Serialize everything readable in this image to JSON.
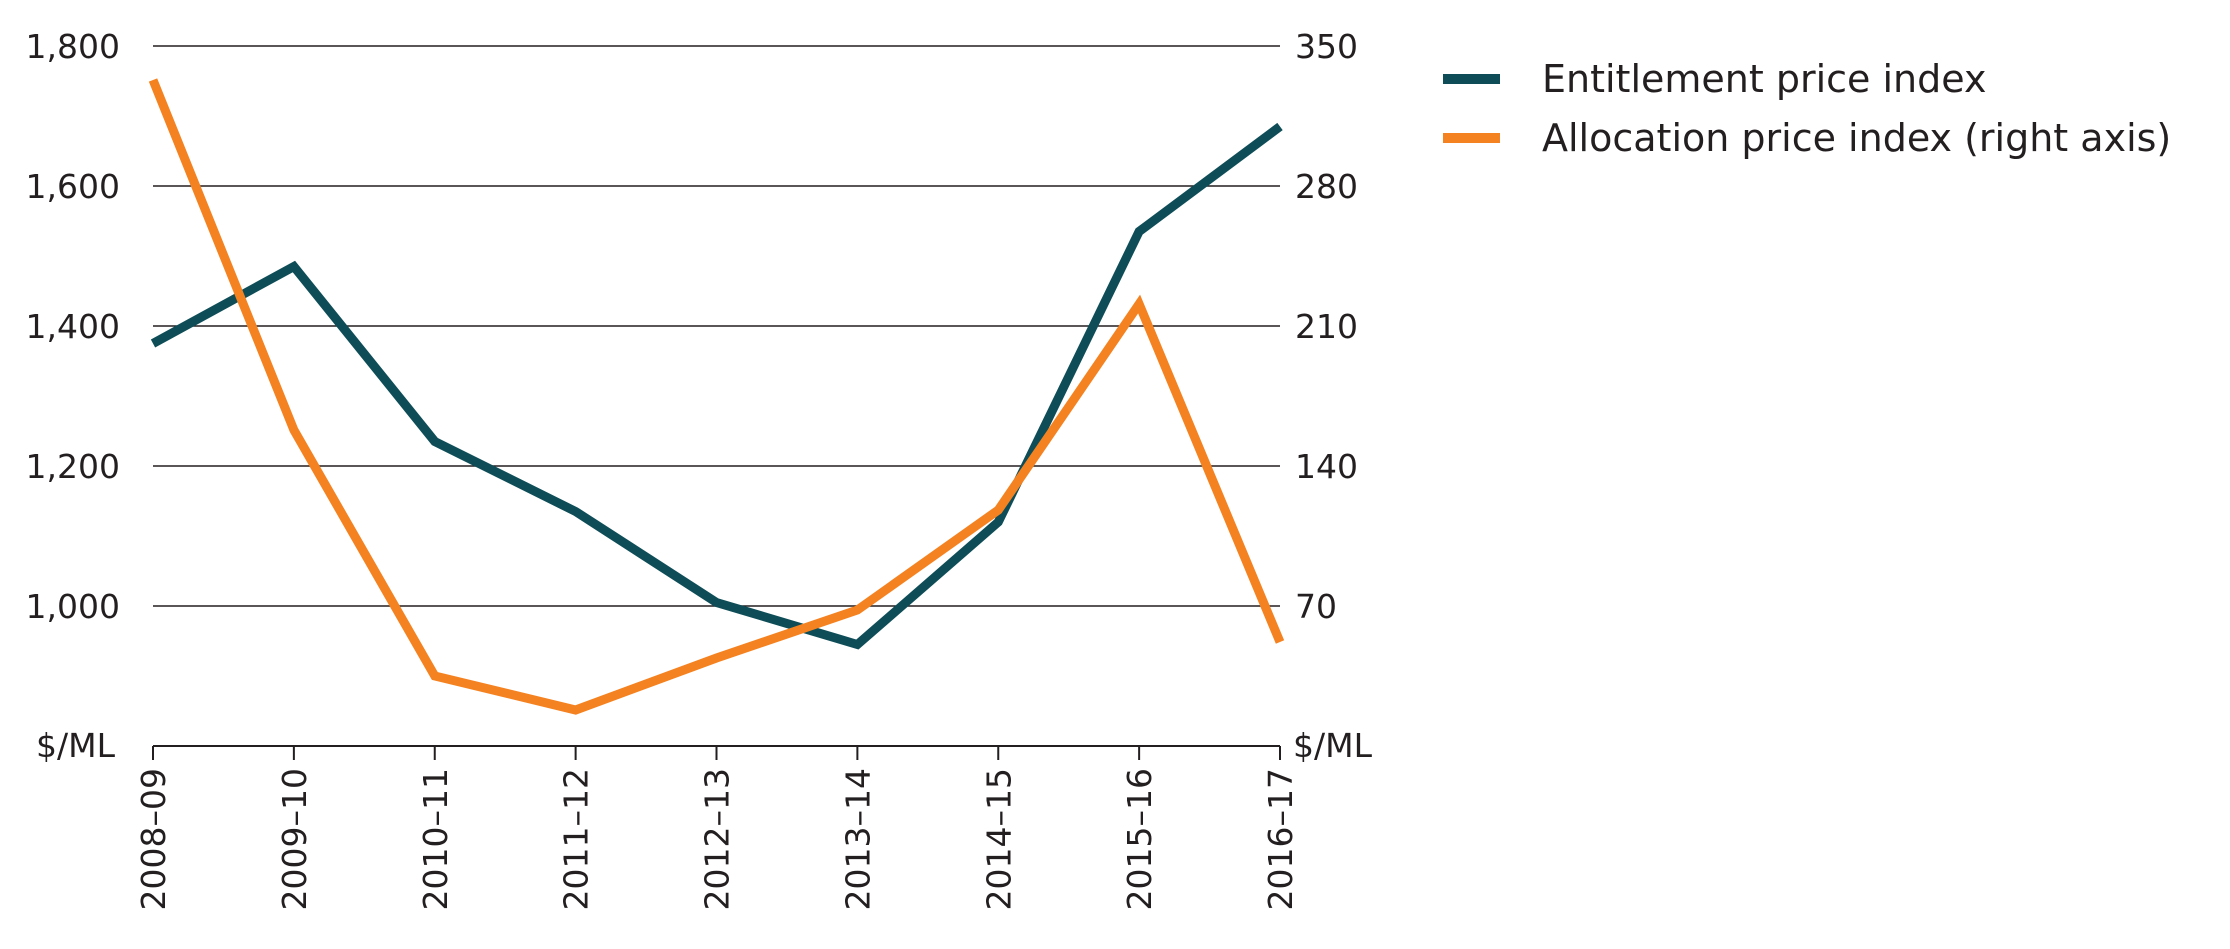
{
  "chart_data": {
    "type": "line",
    "categories": [
      "2008–09",
      "2009–10",
      "2010–11",
      "2011–12",
      "2012–13",
      "2013–14",
      "2014–15",
      "2015–16",
      "2016–17"
    ],
    "y_left": {
      "unit_label": "$/ML",
      "range": [
        800,
        1800
      ],
      "ticks": [
        "1,000",
        "1,200",
        "1,400",
        "1,600",
        "1,800"
      ],
      "tick_values": [
        1000,
        1200,
        1400,
        1600,
        1800
      ]
    },
    "y_right": {
      "unit_label": "$/ML",
      "range": [
        0,
        350
      ],
      "ticks": [
        "70",
        "140",
        "210",
        "280",
        "350"
      ],
      "tick_values": [
        70,
        140,
        210,
        280,
        350
      ]
    },
    "grid": true,
    "legend_position": "top-right",
    "series": [
      {
        "name": "Entitlement price index",
        "axis": "left",
        "color": "#0e4d57",
        "values": [
          1375,
          1485,
          1235,
          1135,
          1005,
          945,
          1120,
          1535,
          1685
        ]
      },
      {
        "name": "Allocation price index (right axis)",
        "axis": "right",
        "color": "#f58220",
        "values": [
          333,
          158,
          35,
          18,
          44,
          68,
          118,
          221,
          52
        ]
      }
    ]
  }
}
